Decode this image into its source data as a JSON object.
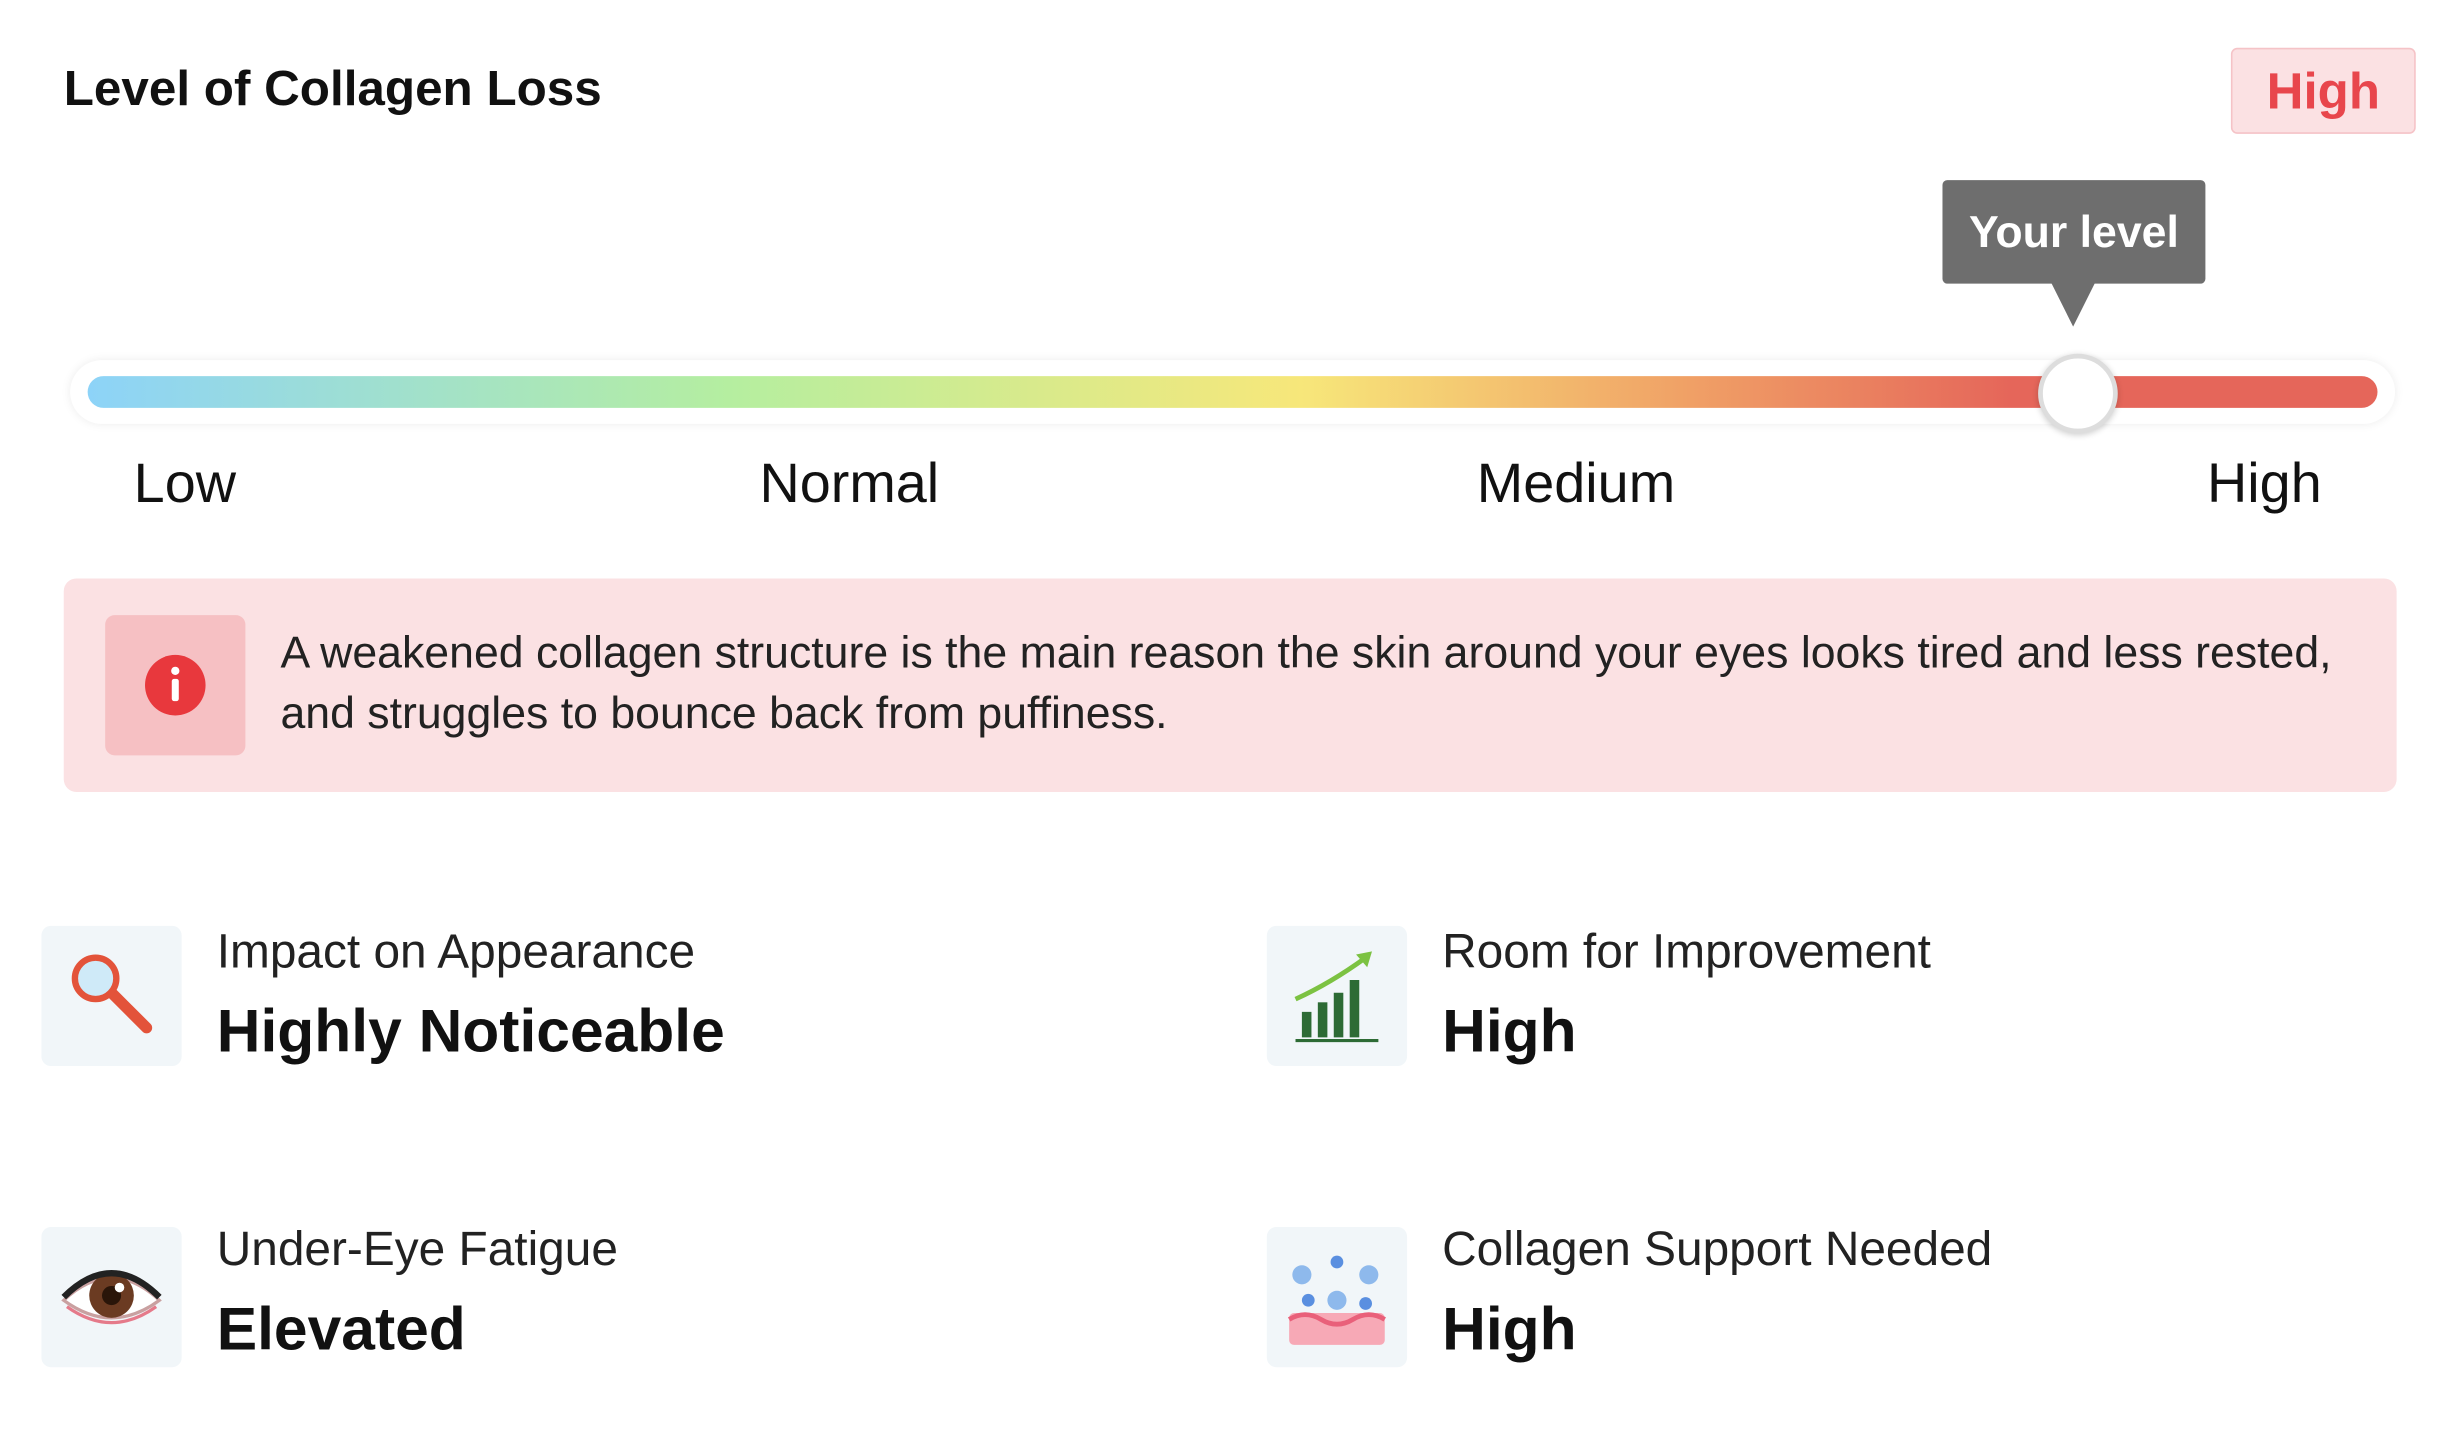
{
  "header": {
    "title": "Level of Collagen Loss",
    "badge": "High"
  },
  "slider": {
    "marker_label": "Your level",
    "labels": [
      "Low",
      "Normal",
      "Medium",
      "High"
    ]
  },
  "info": {
    "text": "A weakened collagen structure is the main reason the skin around your eyes looks tired and less rested, and struggles to bounce back from puffiness."
  },
  "items": [
    {
      "label": "Impact on Appearance",
      "value": "Highly Noticeable"
    },
    {
      "label": "Room for Improvement",
      "value": "High"
    },
    {
      "label": "Under-Eye Fatigue",
      "value": "Elevated"
    },
    {
      "label": "Collagen Support Needed",
      "value": "High"
    }
  ]
}
